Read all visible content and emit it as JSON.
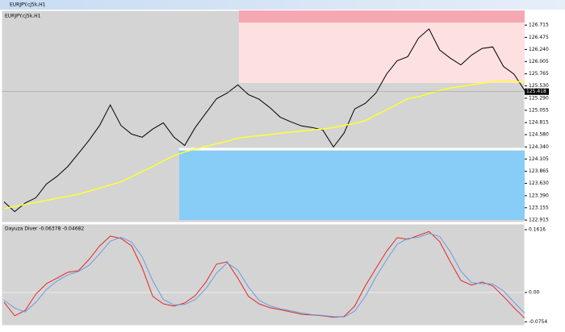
{
  "window": {
    "title": "EURJPY.cj5k,H1"
  },
  "chart_data": [
    {
      "type": "line",
      "title": "EURJPY.cj5k,H1",
      "series": [
        {
          "color": "#000000",
          "values": [
            123.27,
            123.08,
            123.25,
            123.35,
            123.62,
            123.77,
            123.96,
            124.21,
            124.47,
            124.76,
            125.16,
            124.76,
            124.59,
            124.53,
            124.69,
            124.81,
            124.53,
            124.37,
            124.72,
            125.0,
            125.28,
            125.39,
            125.55,
            125.36,
            125.27,
            125.11,
            124.92,
            124.83,
            124.75,
            124.72,
            124.67,
            124.34,
            124.61,
            125.08,
            125.19,
            125.39,
            125.76,
            126.02,
            126.1,
            126.46,
            126.64,
            126.23,
            126.07,
            125.94,
            126.13,
            126.26,
            126.29,
            125.91,
            125.76,
            125.44
          ]
        },
        {
          "color": "#ffff33",
          "values": [
            123.14,
            123.18,
            123.22,
            123.26,
            123.3,
            123.34,
            123.38,
            123.42,
            123.48,
            123.54,
            123.6,
            123.66,
            123.76,
            123.86,
            123.96,
            124.07,
            124.17,
            124.24,
            124.3,
            124.35,
            124.4,
            124.45,
            124.51,
            124.54,
            124.56,
            124.58,
            124.61,
            124.63,
            124.65,
            124.67,
            124.69,
            124.72,
            124.76,
            124.8,
            124.85,
            124.96,
            125.06,
            125.17,
            125.28,
            125.32,
            125.38,
            125.44,
            125.49,
            125.52,
            125.55,
            125.58,
            125.61,
            125.63,
            125.62,
            125.6
          ]
        }
      ],
      "ylim": [
        122.885,
        127.0
      ],
      "yticks": [
        126.715,
        126.475,
        {
          "value": 126.24,
          "label": "126.240"
        },
        126.005,
        125.765,
        {
          "value": 125.53,
          "label": "125.530"
        },
        {
          "value": 125.29,
          "label": "125.290"
        },
        125.055,
        124.815,
        {
          "value": 124.58,
          "label": "124.580"
        },
        {
          "value": 124.34,
          "label": "124.340"
        },
        124.105,
        123.865,
        {
          "value": 123.63,
          "label": "123.630"
        },
        {
          "value": 123.39,
          "label": "123.390"
        },
        123.155,
        122.915
      ],
      "current_price": 125.418
    },
    {
      "type": "line",
      "title": "Dayuza Diver -0.06378 -0.04682",
      "series": [
        {
          "color": "#e02828",
          "values": [
            -0.025,
            -0.06,
            -0.046,
            -0.004,
            0.023,
            0.037,
            0.052,
            0.056,
            0.085,
            0.12,
            0.145,
            0.139,
            0.12,
            0.064,
            -0.01,
            -0.029,
            -0.035,
            -0.027,
            -0.008,
            0.027,
            0.073,
            0.079,
            0.037,
            -0.01,
            -0.029,
            -0.039,
            -0.044,
            -0.05,
            -0.056,
            -0.058,
            -0.06,
            -0.064,
            -0.062,
            -0.035,
            0.017,
            0.062,
            0.106,
            0.141,
            0.137,
            0.147,
            0.157,
            0.131,
            0.079,
            0.031,
            0.019,
            0.027,
            0.017,
            -0.01,
            -0.039,
            -0.066
          ]
        },
        {
          "color": "#6a9ce0",
          "values": [
            -0.02,
            -0.04,
            -0.05,
            -0.025,
            0.008,
            0.03,
            0.045,
            0.054,
            0.07,
            0.1,
            0.132,
            0.142,
            0.13,
            0.092,
            0.03,
            -0.018,
            -0.032,
            -0.031,
            -0.018,
            0.01,
            0.05,
            0.076,
            0.058,
            0.014,
            -0.02,
            -0.034,
            -0.042,
            -0.047,
            -0.053,
            -0.057,
            -0.059,
            -0.062,
            -0.063,
            -0.048,
            -0.01,
            0.04,
            0.084,
            0.124,
            0.139,
            0.142,
            0.152,
            0.144,
            0.105,
            0.055,
            0.025,
            0.023,
            0.022,
            0.004,
            -0.025,
            -0.053
          ]
        }
      ],
      "ylim": [
        -0.083,
        0.17
      ],
      "yticks": [
        0.1616,
        {
          "value": 0,
          "label": "0.00"
        },
        -0.0754
      ]
    }
  ]
}
